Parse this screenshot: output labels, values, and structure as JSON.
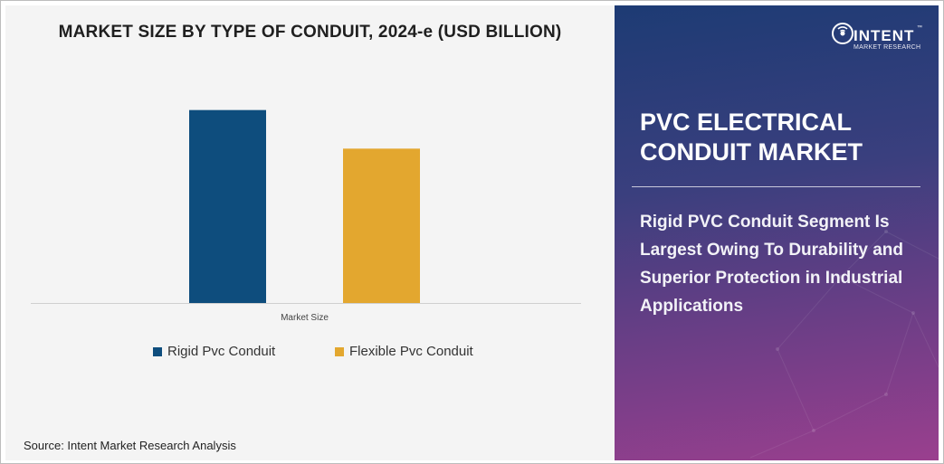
{
  "brand": {
    "logo_name": "INTENT",
    "logo_sub": "MARKET RESEARCH",
    "trademark": "™",
    "logo_icon": "wifi-signal-icon"
  },
  "panel": {
    "title": "PVC ELECTRICAL CONDUIT MARKET",
    "description": "Rigid PVC Conduit Segment Is Largest Owing To Durability and Superior Protection in Industrial Applications"
  },
  "source": "Source: Intent Market Research Analysis",
  "colors": {
    "rigid": "#0e4d7d",
    "flexible": "#e3a72f",
    "panel_top": "#1d3b74",
    "panel_bottom": "#9a3f8e"
  },
  "chart_data": {
    "type": "bar",
    "title": "MARKET SIZE BY TYPE OF CONDUIT, 2024-e (USD BILLION)",
    "categories": [
      "Market Size"
    ],
    "series": [
      {
        "name": "Rigid Pvc Conduit",
        "values": [
          10.0
        ],
        "color": "#0e4d7d"
      },
      {
        "name": "Flexible Pvc Conduit",
        "values": [
          8.0
        ],
        "color": "#e3a72f"
      }
    ],
    "ylim": [
      0,
      12
    ],
    "grid": false,
    "legend": "bottom"
  }
}
